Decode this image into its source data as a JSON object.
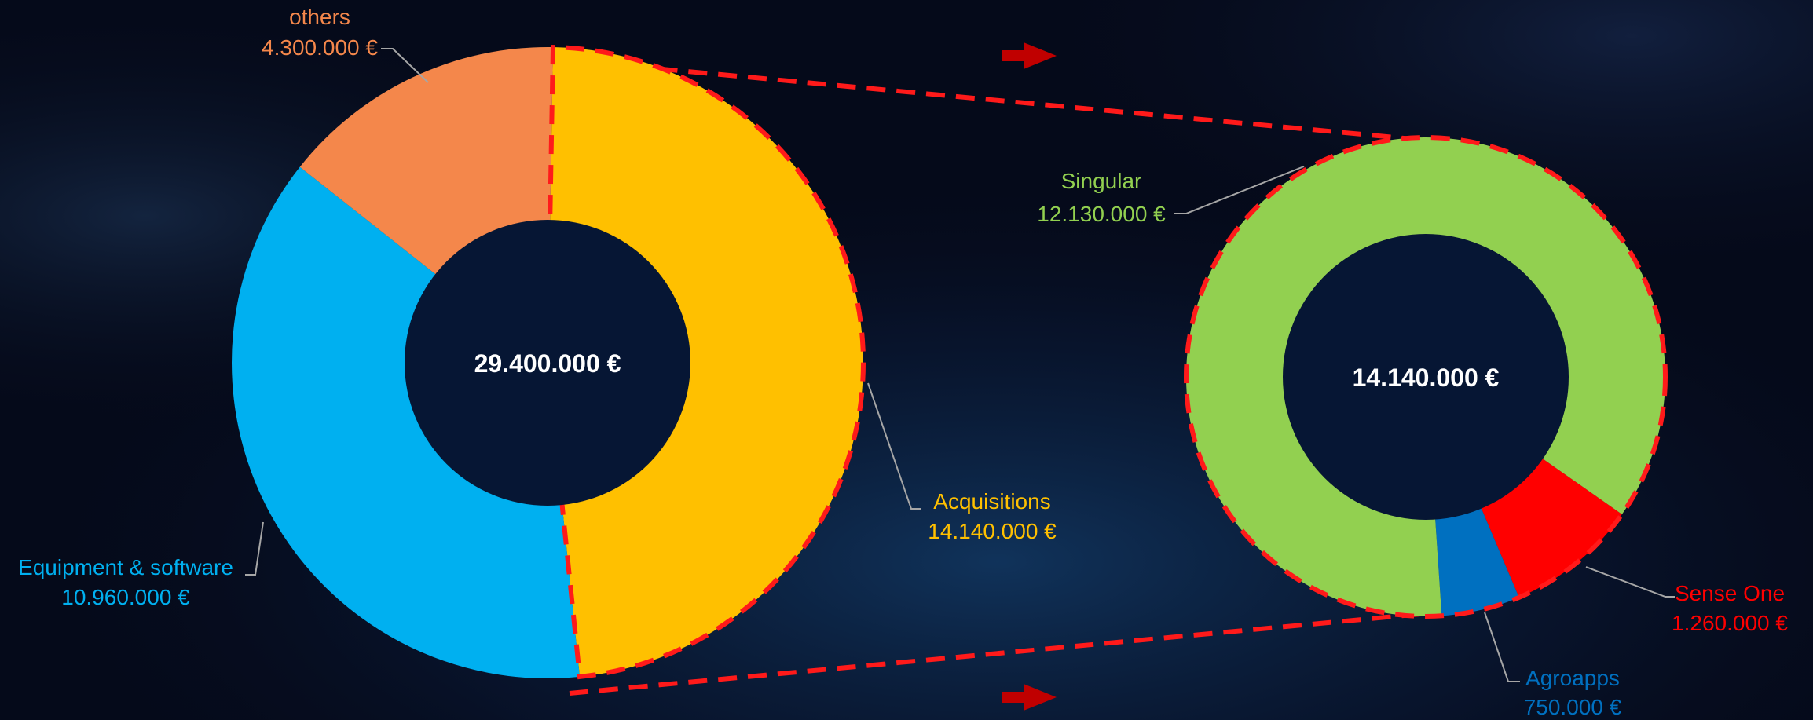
{
  "chart_data": [
    {
      "type": "pie",
      "variant": "donut",
      "center_label": "29.400.000 €",
      "slices": [
        {
          "label": "Acquisitions",
          "value_label": "14.140.000 €",
          "value": 14140000,
          "color": "#FFC000"
        },
        {
          "label": "Equipment & software",
          "value_label": "10.960.000 €",
          "value": 10960000,
          "color": "#00B0F0"
        },
        {
          "label": "others",
          "value_label": "4.300.000 €",
          "value": 4300000,
          "color": "#F4874B"
        }
      ],
      "highlighted_slice": "Acquisitions"
    },
    {
      "type": "pie",
      "variant": "donut",
      "center_label": "14.140.000 €",
      "slices": [
        {
          "label": "Singular",
          "value_label": "12.130.000 €",
          "value": 12130000,
          "color": "#92D050"
        },
        {
          "label": "Sense One",
          "value_label": "1.260.000 €",
          "value": 1260000,
          "color": "#FF0000"
        },
        {
          "label": "Agroapps",
          "value_label": "750.000 €",
          "value": 750000,
          "color": "#0070C0"
        }
      ]
    }
  ],
  "colors": {
    "background": "#050a1a",
    "donut_hole": "#061634",
    "zoom_outline": "#FF1A1A",
    "leader_line": "#A6A6A6"
  }
}
